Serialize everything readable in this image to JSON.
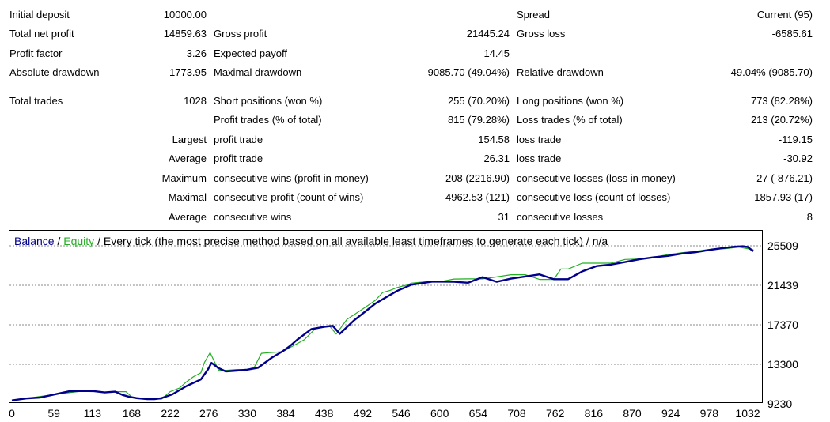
{
  "report": {
    "initial_deposit": {
      "label": "Initial deposit",
      "value": "10000.00"
    },
    "spread": {
      "label": "Spread",
      "value": "Current (95)"
    },
    "total_net_profit": {
      "label": "Total net profit",
      "value": "14859.63"
    },
    "gross_profit": {
      "label": "Gross profit",
      "value": "21445.24"
    },
    "gross_loss": {
      "label": "Gross loss",
      "value": "-6585.61"
    },
    "profit_factor": {
      "label": "Profit factor",
      "value": "3.26"
    },
    "expected_payoff": {
      "label": "Expected payoff",
      "value": "14.45"
    },
    "absolute_drawdown": {
      "label": "Absolute drawdown",
      "value": "1773.95"
    },
    "maximal_drawdown": {
      "label": "Maximal drawdown",
      "value": "9085.70 (49.04%)"
    },
    "relative_drawdown": {
      "label": "Relative drawdown",
      "value": "49.04% (9085.70)"
    },
    "total_trades": {
      "label": "Total trades",
      "value": "1028"
    },
    "short_positions": {
      "label": "Short positions (won %)",
      "value": "255 (70.20%)"
    },
    "long_positions": {
      "label": "Long positions (won %)",
      "value": "773 (82.28%)"
    },
    "profit_trades": {
      "label": "Profit trades (% of total)",
      "value": "815 (79.28%)"
    },
    "loss_trades": {
      "label": "Loss trades (% of total)",
      "value": "213 (20.72%)"
    },
    "largest": {
      "prefix": "Largest",
      "profit_label": "profit trade",
      "profit_value": "154.58",
      "loss_label": "loss trade",
      "loss_value": "-119.15"
    },
    "average": {
      "prefix": "Average",
      "profit_label": "profit trade",
      "profit_value": "26.31",
      "loss_label": "loss trade",
      "loss_value": "-30.92"
    },
    "maximum": {
      "prefix": "Maximum",
      "wins_label": "consecutive wins (profit in money)",
      "wins_value": "208 (2216.90)",
      "losses_label": "consecutive losses (loss in money)",
      "losses_value": "27 (-876.21)"
    },
    "maximal": {
      "prefix": "Maximal",
      "profit_label": "consecutive profit (count of wins)",
      "profit_value": "4962.53 (121)",
      "loss_label": "consecutive loss (count of losses)",
      "loss_value": "-1857.93 (17)"
    },
    "average_consecutive": {
      "prefix": "Average",
      "wins_label": "consecutive wins",
      "wins_value": "31",
      "losses_label": "consecutive losses",
      "losses_value": "8"
    }
  },
  "chart_caption": {
    "balance": "Balance",
    "sep1": " / ",
    "equity": "Equity",
    "rest": " / Every tick (the most precise method based on all available least timeframes to generate each tick) / n/a"
  },
  "colors": {
    "balance": "#00008b",
    "equity": "#22b022",
    "grid": "#8a8a8a",
    "caption_balance": "#00008b",
    "caption_equity": "#22b022"
  },
  "chart_data": {
    "type": "line",
    "xlabel": "",
    "ylabel": "",
    "xlim": [
      0,
      1040
    ],
    "ylim": [
      9230,
      26200
    ],
    "x_ticks": [
      0,
      59,
      113,
      168,
      222,
      276,
      330,
      384,
      438,
      492,
      546,
      600,
      654,
      708,
      762,
      816,
      870,
      924,
      978,
      1032
    ],
    "y_ticks": [
      9230,
      13300,
      17370,
      21439,
      25509
    ],
    "series": [
      {
        "name": "Balance",
        "x": [
          0,
          20,
          40,
          60,
          80,
          100,
          115,
          130,
          145,
          155,
          165,
          175,
          190,
          200,
          210,
          225,
          245,
          265,
          275,
          280,
          290,
          300,
          315,
          330,
          345,
          365,
          380,
          390,
          400,
          420,
          438,
          450,
          460,
          480,
          510,
          540,
          560,
          590,
          620,
          640,
          660,
          680,
          700,
          720,
          740,
          760,
          780,
          800,
          820,
          840,
          860,
          880,
          900,
          920,
          940,
          960,
          980,
          1000,
          1015,
          1025,
          1032,
          1040
        ],
        "values": [
          9580,
          9780,
          9880,
          10200,
          10520,
          10560,
          10540,
          10400,
          10480,
          10150,
          9950,
          9820,
          9720,
          9720,
          9820,
          10210,
          11060,
          11740,
          12770,
          13450,
          12900,
          12570,
          12650,
          12750,
          12930,
          14000,
          14650,
          15180,
          15820,
          16930,
          17160,
          17260,
          16440,
          17830,
          19570,
          20850,
          21500,
          21820,
          21800,
          21700,
          22280,
          21800,
          22120,
          22340,
          22560,
          22070,
          22070,
          22870,
          23420,
          23570,
          23830,
          24120,
          24320,
          24470,
          24710,
          24860,
          25100,
          25300,
          25420,
          25460,
          25390,
          24950
        ]
      },
      {
        "name": "Equity",
        "x": [
          0,
          60,
          100,
          113,
          130,
          145,
          160,
          168,
          190,
          210,
          222,
          235,
          245,
          255,
          265,
          270,
          278,
          290,
          300,
          315,
          330,
          340,
          350,
          360,
          380,
          395,
          410,
          425,
          438,
          445,
          455,
          470,
          490,
          510,
          520,
          530,
          540,
          556,
          560,
          580,
          600,
          620,
          640,
          660,
          680,
          700,
          720,
          740,
          760,
          770,
          780,
          800,
          820,
          840,
          860,
          880,
          900,
          920,
          940,
          960,
          980,
          1000,
          1020,
          1040
        ],
        "values": [
          9580,
          10200,
          10560,
          10560,
          10400,
          10480,
          10480,
          9950,
          9720,
          9720,
          10480,
          10850,
          11500,
          12040,
          12420,
          13480,
          14500,
          12670,
          12670,
          12760,
          12760,
          13000,
          14430,
          14500,
          14600,
          15220,
          15830,
          16930,
          17160,
          17290,
          16420,
          17930,
          18900,
          19900,
          20700,
          20900,
          21200,
          21500,
          21660,
          21800,
          21800,
          22080,
          22100,
          22100,
          22300,
          22530,
          22530,
          22040,
          22040,
          23120,
          23120,
          23720,
          23720,
          23720,
          24100,
          24150,
          24330,
          24600,
          24800,
          24950,
          25150,
          25220,
          25380,
          25100
        ]
      }
    ]
  }
}
